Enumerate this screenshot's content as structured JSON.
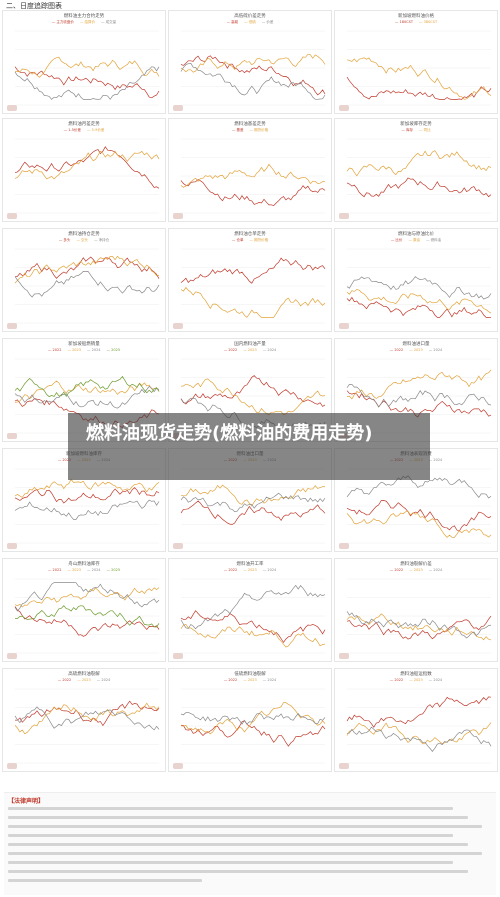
{
  "section": {
    "title": "二、日度追踪图表"
  },
  "overlay": {
    "text": "燃料油现货走势(燃料油的费用走势)"
  },
  "disclaimer": {
    "title": "【法律声明】"
  },
  "panels": [
    {
      "title": "燃料油主力合约走势",
      "legend": [
        "主力收盘价",
        "结算价",
        "成交量"
      ]
    },
    {
      "title": "高低硫价差走势",
      "legend": [
        "高硫",
        "低硫",
        "价差"
      ]
    },
    {
      "title": "新加坡燃料油价格",
      "legend": [
        "180CST",
        "380CST"
      ]
    },
    {
      "title": "燃料油月差走势",
      "legend": [
        "1-5价差",
        "5-9价差"
      ]
    },
    {
      "title": "燃料油基差走势",
      "legend": [
        "基差",
        "期货价格"
      ]
    },
    {
      "title": "新加坡库存走势",
      "legend": [
        "库存",
        "同比"
      ]
    },
    {
      "title": "燃料油持仓走势",
      "legend": [
        "多头",
        "空头",
        "净持仓"
      ]
    },
    {
      "title": "燃料油仓单走势",
      "legend": [
        "仓单",
        "期货价格"
      ]
    },
    {
      "title": "燃料油与原油比价",
      "legend": [
        "比价",
        "原油",
        "燃料油"
      ]
    },
    {
      "title": "新加坡船燃销量",
      "legend": [
        "2022",
        "2023",
        "2024",
        "2025"
      ]
    },
    {
      "title": "国内燃料油产量",
      "legend": [
        "2022",
        "2023",
        "2024"
      ]
    },
    {
      "title": "燃料油进口量",
      "legend": [
        "2022",
        "2023",
        "2024"
      ]
    },
    {
      "title": "新加坡燃料油库存",
      "legend": [
        "2022",
        "2023",
        "2024"
      ]
    },
    {
      "title": "燃料油出口量",
      "legend": [
        "2022",
        "2023",
        "2024"
      ]
    },
    {
      "title": "燃料油表观消费",
      "legend": [
        "2022",
        "2023",
        "2024"
      ]
    },
    {
      "title": "舟山燃料油库存",
      "legend": [
        "2022",
        "2023",
        "2024",
        "2025"
      ]
    },
    {
      "title": "燃料油开工率",
      "legend": [
        "2022",
        "2023",
        "2024"
      ]
    },
    {
      "title": "燃料油裂解价差",
      "legend": [
        "2022",
        "2023",
        "2024"
      ]
    },
    {
      "title": "高硫燃料油裂解",
      "legend": [
        "2022",
        "2023",
        "2024"
      ]
    },
    {
      "title": "低硫燃料油裂解",
      "legend": [
        "2022",
        "2023",
        "2024"
      ]
    },
    {
      "title": "燃料油船运指数",
      "legend": [
        "2022",
        "2023",
        "2024"
      ]
    }
  ],
  "colors": {
    "red": "#c0392b",
    "gold": "#e2a33a",
    "grey": "#8a8a8a",
    "green": "#6a9a2a",
    "navy": "#1f2d5a",
    "blue": "#4a78b5"
  }
}
